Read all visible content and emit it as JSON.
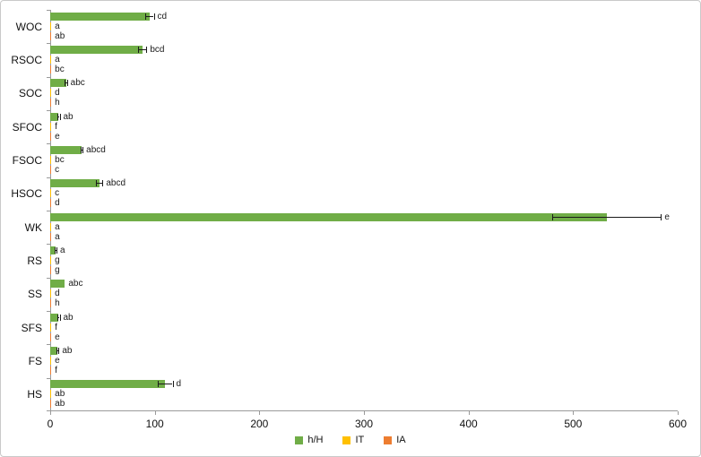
{
  "chart_data": {
    "type": "bar",
    "orientation": "horizontal",
    "title": "",
    "xlabel": "",
    "ylabel": "",
    "xlim": [
      0,
      600
    ],
    "xticks": [
      0,
      100,
      200,
      300,
      400,
      500,
      600
    ],
    "grid": false,
    "legend_position": "bottom",
    "categories": [
      "WOC",
      "RSOC",
      "SOC",
      "SFOC",
      "FSOC",
      "HSOC",
      "WK",
      "RS",
      "SS",
      "SFS",
      "FS",
      "HS"
    ],
    "series": [
      {
        "name": "h/H",
        "color": "#70AD47",
        "values": [
          95,
          88,
          15,
          8,
          30,
          47,
          532,
          5,
          14,
          8,
          7,
          110
        ],
        "errors": [
          4,
          4,
          1,
          1,
          1,
          3,
          52,
          1,
          0,
          1,
          1,
          7
        ],
        "labels": [
          "cd",
          "bcd",
          "abc",
          "ab",
          "abcd",
          "abcd",
          "e",
          "a",
          "abc",
          "ab",
          "ab",
          "d"
        ]
      },
      {
        "name": "IT",
        "color": "#FFC000",
        "values": [
          1,
          1,
          1,
          1,
          1,
          1,
          1,
          1,
          1,
          1,
          1,
          1
        ],
        "errors": [
          0,
          0,
          0,
          0,
          0,
          0,
          0,
          0,
          0,
          0,
          0,
          0
        ],
        "labels": [
          "a",
          "a",
          "d",
          "f",
          "bc",
          "c",
          "a",
          "g",
          "d",
          "f",
          "e",
          "ab"
        ]
      },
      {
        "name": "IA",
        "color": "#ED7D31",
        "values": [
          1,
          1,
          1,
          1,
          1,
          1,
          1,
          1,
          1,
          1,
          1,
          1
        ],
        "errors": [
          0,
          0,
          0,
          0,
          0,
          0,
          0,
          0,
          0,
          0,
          0,
          0
        ],
        "labels": [
          "ab",
          "bc",
          "h",
          "e",
          "c",
          "d",
          "a",
          "g",
          "h",
          "e",
          "f",
          "ab"
        ]
      }
    ]
  }
}
